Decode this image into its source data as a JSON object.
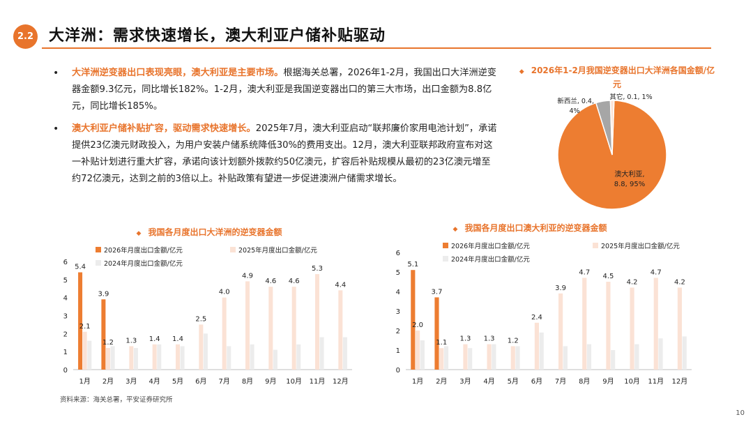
{
  "header": {
    "section": "2.2",
    "title": "大洋洲：需求快速增长，澳大利亚户储补贴驱动"
  },
  "bullets": [
    {
      "highlight": "大洋洲逆变器出口表现亮眼，澳大利亚是主要市场。",
      "text": "根据海关总署，2026年1-2月，我国出口大洋洲逆变器金额9.3亿元，同比增长182%。1-2月，澳大利亚是我国逆变器出口的第三大市场，出口金额为8.8亿元，同比增长185%。"
    },
    {
      "highlight": "澳大利亚户储补贴扩容，驱动需求快速增长。",
      "text": "2025年7月，澳大利亚启动“联邦廉价家用电池计划”，承诺提供23亿澳元财政投入，为用户安装户储系统降低30%的费用支出。12月，澳大利亚联邦政府宣布对这一补贴计划进行重大扩容，承诺向该计划额外拨款约50亿澳元，扩容后补贴规模从最初的23亿澳元增至约72亿澳元，达到之前的3倍以上。补贴政策有望进一步促进澳洲户储需求增长。"
    }
  ],
  "icons": {
    "bullet_marker": "diamond-icon"
  },
  "colors": {
    "accent": "#e8742c",
    "series_2026": "#ed7d31",
    "series_2025": "#fbe2d5",
    "series_2024": "#ececec",
    "pie_grey": "#a6a6a6"
  },
  "footer": {
    "source": "资料来源：海关总署，平安证券研究所",
    "page": "10"
  },
  "chart_data": [
    {
      "type": "pie",
      "title": "2026年1-2月我国逆变器出口大洋洲各国金额/亿元",
      "slices": [
        {
          "name": "澳大利亚",
          "value": 8.8,
          "percent": 95,
          "label": "澳大利亚,\n8.8, 95%"
        },
        {
          "name": "新西兰",
          "value": 0.4,
          "percent": 4,
          "label": "新西兰, 0.4,\n4%"
        },
        {
          "name": "其它",
          "value": 0.1,
          "percent": 1,
          "label": "其它, 0.1, 1%"
        }
      ]
    },
    {
      "type": "bar",
      "title": "我国各月度出口大洋洲的逆变器金额",
      "categories": [
        "1月",
        "2月",
        "3月",
        "4月",
        "5月",
        "6月",
        "7月",
        "8月",
        "9月",
        "10月",
        "11月",
        "12月"
      ],
      "ylim": [
        0,
        6
      ],
      "yticks": [
        0,
        1,
        2,
        3,
        4,
        5,
        6
      ],
      "legend": "top",
      "series": [
        {
          "name": "2026年月度出口金额/亿元",
          "values": [
            5.4,
            3.9,
            null,
            null,
            null,
            null,
            null,
            null,
            null,
            null,
            null,
            null
          ],
          "labels": [
            "5.4",
            "3.9",
            "",
            "",
            "",
            "",
            "",
            "",
            "",
            "",
            "",
            ""
          ]
        },
        {
          "name": "2025年月度出口金额/亿元",
          "values": [
            2.1,
            1.2,
            1.3,
            1.4,
            1.4,
            2.5,
            4.0,
            4.9,
            4.6,
            4.6,
            5.3,
            4.4
          ],
          "labels": [
            "2.1",
            "1.2",
            "1.3",
            "1.4",
            "1.4",
            "2.5",
            "4.0",
            "4.9",
            "4.6",
            "4.6",
            "5.3",
            "4.4"
          ]
        },
        {
          "name": "2024年月度出口金额/亿元",
          "values": [
            1.6,
            1.3,
            1.2,
            1.4,
            1.3,
            2.0,
            1.3,
            1.4,
            1.1,
            1.4,
            1.8,
            1.8
          ]
        }
      ]
    },
    {
      "type": "bar",
      "title": "我国各月度出口澳大利亚的逆变器金额",
      "categories": [
        "1月",
        "2月",
        "3月",
        "4月",
        "5月",
        "6月",
        "7月",
        "8月",
        "9月",
        "10月",
        "11月",
        "12月"
      ],
      "ylim": [
        0,
        6
      ],
      "yticks": [
        0,
        1,
        2,
        3,
        4,
        5,
        6
      ],
      "legend": "top",
      "series": [
        {
          "name": "2026年月度出口金额/亿元",
          "values": [
            5.1,
            3.7,
            null,
            null,
            null,
            null,
            null,
            null,
            null,
            null,
            null,
            null
          ],
          "labels": [
            "5.1",
            "3.7",
            "",
            "",
            "",
            "",
            "",
            "",
            "",
            "",
            "",
            ""
          ]
        },
        {
          "name": "2025年月度出口金额/亿元",
          "values": [
            2.0,
            1.1,
            1.3,
            1.3,
            1.2,
            2.4,
            3.9,
            4.7,
            4.5,
            4.2,
            4.7,
            4.2
          ],
          "labels": [
            "2.0",
            "1.1",
            "1.3",
            "1.3",
            "1.2",
            "2.4",
            "3.9",
            "4.7",
            "4.5",
            "4.2",
            "4.7",
            "4.2"
          ]
        },
        {
          "name": "2024年月度出口金额/亿元",
          "values": [
            1.5,
            1.2,
            1.1,
            1.3,
            1.2,
            1.9,
            1.2,
            1.3,
            1.0,
            1.3,
            1.6,
            1.7
          ]
        }
      ]
    }
  ]
}
